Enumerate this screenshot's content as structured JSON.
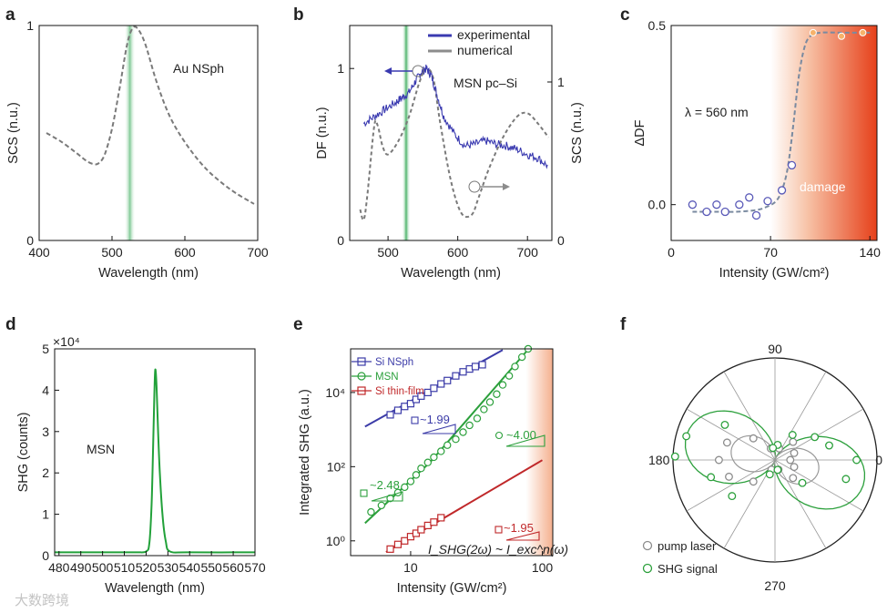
{
  "panels": {
    "a": {
      "label": "a"
    },
    "b": {
      "label": "b"
    },
    "c": {
      "label": "c"
    },
    "d": {
      "label": "d"
    },
    "e": {
      "label": "e"
    },
    "f": {
      "label": "f"
    }
  },
  "watermark": "大数跨境",
  "chart_data": [
    {
      "panel": "a",
      "type": "line",
      "xlabel": "Wavelength (nm)",
      "ylabel": "SCS (n.u.)",
      "xlim": [
        400,
        700
      ],
      "ylim": [
        0,
        1
      ],
      "xticks": [
        "400",
        "500",
        "600",
        "700"
      ],
      "yticks": [
        "0",
        "1"
      ],
      "annotation": "Au NSph",
      "highlight_band_nm": [
        517,
        532
      ],
      "series": [
        {
          "style": "dashed-gray",
          "x": [
            410,
            430,
            450,
            465,
            475,
            482,
            490,
            500,
            510,
            520,
            527,
            534,
            545,
            560,
            575,
            590,
            610,
            630,
            650,
            670,
            695
          ],
          "y": [
            0.5,
            0.46,
            0.41,
            0.37,
            0.355,
            0.36,
            0.4,
            0.52,
            0.7,
            0.9,
            0.98,
            0.99,
            0.92,
            0.75,
            0.61,
            0.51,
            0.41,
            0.33,
            0.27,
            0.22,
            0.17
          ]
        }
      ]
    },
    {
      "panel": "b",
      "type": "line",
      "xlabel": "Wavelength (nm)",
      "ylabel": "DF (n.u.)",
      "ylabel_right": "SCS (n.u.)",
      "xlim": [
        445,
        735
      ],
      "ylim": [
        0,
        1.25
      ],
      "xticks": [
        "500",
        "600",
        "700"
      ],
      "yticks": [
        "0",
        "1"
      ],
      "yticks_right": [
        "0",
        "1"
      ],
      "annotation": "MSN pc–Si",
      "highlight_band_nm": [
        520,
        532
      ],
      "legend": [
        "experimental",
        "numerical"
      ],
      "legend_position": "top-right",
      "series": [
        {
          "name": "experimental",
          "style": "noisy-blue",
          "x": [
            465,
            480,
            495,
            510,
            520,
            530,
            540,
            548,
            555,
            562,
            570,
            580,
            595,
            610,
            625,
            640,
            655,
            670,
            685,
            700,
            715,
            730
          ],
          "y": [
            0.68,
            0.72,
            0.76,
            0.8,
            0.83,
            0.86,
            0.93,
            0.98,
            1.0,
            0.96,
            0.85,
            0.72,
            0.62,
            0.55,
            0.56,
            0.58,
            0.56,
            0.55,
            0.53,
            0.5,
            0.48,
            0.43
          ]
        },
        {
          "name": "numerical",
          "style": "dashed-gray",
          "x": [
            460,
            465,
            470,
            480,
            485,
            492,
            500,
            515,
            530,
            545,
            555,
            565,
            575,
            590,
            605,
            620,
            630,
            645,
            665,
            685,
            700,
            715,
            730
          ],
          "y": [
            0.18,
            0.12,
            0.25,
            0.66,
            0.67,
            0.55,
            0.5,
            0.58,
            0.72,
            0.92,
            1.0,
            0.94,
            0.68,
            0.35,
            0.16,
            0.15,
            0.25,
            0.42,
            0.6,
            0.72,
            0.74,
            0.68,
            0.6
          ]
        }
      ]
    },
    {
      "panel": "c",
      "type": "scatter",
      "xlabel": "Intensity (GW/cm²)",
      "ylabel": "ΔDF",
      "xlim": [
        0,
        145
      ],
      "ylim": [
        -0.1,
        0.5
      ],
      "xticks": [
        "0",
        "70",
        "140"
      ],
      "yticks": [
        "0.0",
        "0.5"
      ],
      "annotation": "λ = 560 nm",
      "damage_label": "damage",
      "damage_region_x": [
        70,
        145
      ],
      "series": [
        {
          "name": "points",
          "style": "open-blue",
          "x": [
            15,
            25,
            32,
            38,
            48,
            55,
            60,
            68,
            78,
            85
          ],
          "y": [
            0.0,
            -0.02,
            0.0,
            -0.02,
            0.0,
            0.02,
            -0.03,
            0.01,
            0.04,
            0.11
          ]
        },
        {
          "name": "damaged",
          "style": "filled-orange",
          "x": [
            100,
            120,
            135
          ],
          "y": [
            0.48,
            0.47,
            0.48
          ]
        },
        {
          "name": "fit",
          "style": "dashed-gray",
          "x": [
            15,
            30,
            45,
            60,
            68,
            74,
            78,
            82,
            86,
            90,
            94,
            98,
            105,
            120,
            140
          ],
          "y": [
            -0.02,
            -0.02,
            -0.02,
            -0.015,
            -0.005,
            0.01,
            0.04,
            0.1,
            0.22,
            0.36,
            0.44,
            0.47,
            0.48,
            0.48,
            0.48
          ]
        }
      ]
    },
    {
      "panel": "d",
      "type": "line",
      "xlabel": "Wavelength (nm)",
      "ylabel": "SHG (counts)",
      "multiplier": "×10⁴",
      "xlim": [
        478,
        570
      ],
      "ylim": [
        0,
        5
      ],
      "xticks": [
        "480",
        "490",
        "500",
        "510",
        "520",
        "530",
        "540",
        "550",
        "560",
        "570"
      ],
      "yticks": [
        "0",
        "1",
        "2",
        "3",
        "4",
        "5"
      ],
      "annotation": "MSN",
      "series": [
        {
          "style": "green",
          "x": [
            478,
            500,
            515,
            520,
            521.5,
            522.5,
            523.2,
            523.8,
            524.2,
            524.8,
            525.5,
            526.3,
            527.5,
            529,
            531,
            540,
            570
          ],
          "y": [
            0.08,
            0.08,
            0.08,
            0.1,
            0.3,
            1.2,
            2.6,
            3.9,
            4.5,
            4.1,
            3.0,
            2.0,
            1.0,
            0.35,
            0.1,
            0.08,
            0.08
          ]
        }
      ]
    },
    {
      "panel": "e",
      "type": "scatter",
      "xlabel": "Intensity (GW/cm²)",
      "ylabel": "Integrated SHG (a.u.)",
      "xscale": "log",
      "yscale": "log",
      "xlim": [
        3.5,
        120
      ],
      "ylim": [
        0.4,
        150000
      ],
      "xticks": [
        "10",
        "100"
      ],
      "yticks": [
        "10⁰",
        "10²",
        "10⁴"
      ],
      "formula": "I_SHG(2ω) ~ I_exc^n(ω)",
      "legend": [
        "Si NSph",
        "MSN",
        "Si thin-film"
      ],
      "legend_position": "top-left",
      "slopes": {
        "Si NSph": "~1.99",
        "MSN_low": "~2.48",
        "MSN_high": "~4.00",
        "Si thin-film": "~1.95"
      },
      "series": [
        {
          "name": "Si NSph",
          "color": "#3c3ca8",
          "x": [
            7,
            8,
            9,
            10,
            11,
            12,
            13.5,
            15,
            17,
            19,
            22,
            25,
            28,
            31,
            35
          ],
          "y": [
            2500,
            3300,
            4200,
            5000,
            6500,
            8000,
            10000,
            13000,
            17000,
            21000,
            28000,
            36000,
            43000,
            50000,
            56000
          ],
          "fit_x": [
            4.5,
            50
          ],
          "fit_y": [
            1200,
            140000
          ]
        },
        {
          "name": "MSN",
          "color": "#2ca03c",
          "x": [
            5,
            6,
            7,
            8,
            9,
            10,
            11,
            12,
            13.5,
            15,
            17,
            19,
            22,
            25,
            28,
            32,
            36,
            40,
            45,
            50,
            56,
            62,
            70,
            78
          ],
          "y": [
            6,
            9,
            14,
            20,
            28,
            40,
            60,
            90,
            130,
            180,
            260,
            380,
            550,
            850,
            1300,
            2000,
            3500,
            5500,
            9000,
            16000,
            28000,
            50000,
            90000,
            150000
          ],
          "fit_x": [
            4.5,
            14,
            80
          ],
          "fit_y": [
            3,
            130,
            160000
          ]
        },
        {
          "name": "Si thin-film",
          "color": "#c0282a",
          "x": [
            7,
            8,
            9,
            10,
            11,
            12,
            13.5,
            15,
            17
          ],
          "y": [
            0.6,
            0.8,
            1.0,
            1.3,
            1.6,
            2.0,
            2.6,
            3.2,
            4.2
          ],
          "fit_x": [
            6.5,
            100
          ],
          "fit_y": [
            0.5,
            150
          ]
        }
      ]
    },
    {
      "panel": "f",
      "type": "scatter",
      "coordinate": "polar",
      "angle_labels": [
        "90",
        "180",
        "270",
        "0"
      ],
      "legend": [
        "pump laser",
        "SHG signal"
      ],
      "legend_position": "bottom-left",
      "series": [
        {
          "name": "pump laser",
          "color": "#8c8c8c",
          "angle_deg": [
            0,
            20,
            45,
            70,
            110,
            135,
            160,
            180,
            200,
            225,
            250,
            290,
            315,
            340
          ],
          "r": [
            0.15,
            0.2,
            0.25,
            0.12,
            0.12,
            0.3,
            0.5,
            0.55,
            0.48,
            0.3,
            0.1,
            0.1,
            0.25,
            0.2
          ]
        },
        {
          "name": "SHG signal",
          "color": "#2ca03c",
          "angle_deg": [
            0,
            15,
            30,
            55,
            80,
            100,
            145,
            165,
            178,
            195,
            220,
            250,
            285,
            320,
            345
          ],
          "r": [
            0.8,
            0.55,
            0.45,
            0.3,
            0.15,
            0.12,
            0.6,
            0.9,
            0.98,
            0.65,
            0.55,
            0.15,
            0.1,
            0.35,
            0.72
          ]
        }
      ]
    }
  ]
}
